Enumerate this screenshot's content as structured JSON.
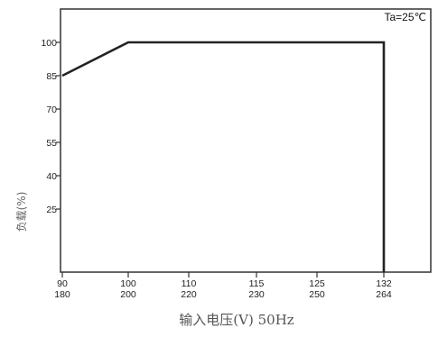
{
  "chart_data": {
    "type": "line",
    "title": "",
    "corner_note": "Ta=25℃",
    "xlabel": "输入电压(V) 50Hz",
    "ylabel": "负载(%)",
    "x_ticks": [
      {
        "x": 90,
        "line1": "90",
        "line2": "180"
      },
      {
        "x": 100,
        "line1": "100",
        "line2": "200"
      },
      {
        "x": 110,
        "line1": "110",
        "line2": "220"
      },
      {
        "x": 115,
        "line1": "115",
        "line2": "230"
      },
      {
        "x": 125,
        "line1": "125",
        "line2": "250"
      },
      {
        "x": 132,
        "line1": "132",
        "line2": "264"
      }
    ],
    "y_ticks": [
      "100",
      "85",
      "70",
      "55",
      "40",
      "25"
    ],
    "series": [
      {
        "points": [
          {
            "x": "90",
            "y": 85
          },
          {
            "x": "100",
            "y": 100
          },
          {
            "x": "132",
            "y": 100
          },
          {
            "x": "132",
            "y": 0
          }
        ]
      }
    ],
    "grid": false,
    "line_color": "#222222",
    "axis_color": "#333333"
  }
}
